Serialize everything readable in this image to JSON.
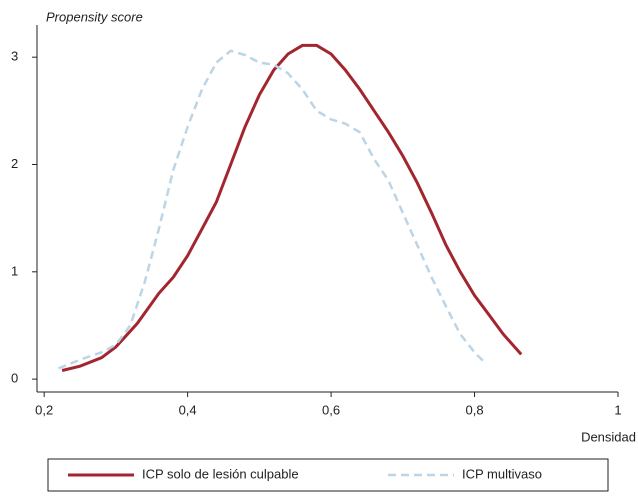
{
  "chart_data": {
    "type": "line",
    "ylabel": "Propensity score",
    "xlabel": "Densidad",
    "xlim": [
      0.19,
      1.0
    ],
    "ylim": [
      -0.12,
      3.3
    ],
    "xticks": [
      {
        "value": 0.2,
        "label": "0,2"
      },
      {
        "value": 0.4,
        "label": "0,4"
      },
      {
        "value": 0.6,
        "label": "0,6"
      },
      {
        "value": 0.8,
        "label": "0,8"
      },
      1
    ],
    "yticks": [
      0,
      1,
      2,
      3
    ],
    "series": [
      {
        "name": "ICP solo de lesión culpable",
        "color": "#a3252e",
        "dash": false,
        "x": [
          0.225,
          0.25,
          0.28,
          0.3,
          0.33,
          0.36,
          0.38,
          0.4,
          0.42,
          0.44,
          0.46,
          0.48,
          0.5,
          0.52,
          0.54,
          0.56,
          0.58,
          0.6,
          0.62,
          0.64,
          0.66,
          0.68,
          0.7,
          0.72,
          0.74,
          0.76,
          0.78,
          0.8,
          0.82,
          0.84,
          0.865
        ],
        "values": [
          0.08,
          0.12,
          0.2,
          0.3,
          0.52,
          0.8,
          0.95,
          1.15,
          1.4,
          1.65,
          2.0,
          2.35,
          2.65,
          2.88,
          3.03,
          3.11,
          3.11,
          3.03,
          2.88,
          2.7,
          2.5,
          2.3,
          2.08,
          1.83,
          1.55,
          1.25,
          1.0,
          0.78,
          0.6,
          0.42,
          0.23
        ]
      },
      {
        "name": "ICP multivaso",
        "color": "#bcd5e6",
        "dash": true,
        "x": [
          0.22,
          0.25,
          0.28,
          0.3,
          0.32,
          0.34,
          0.36,
          0.38,
          0.4,
          0.42,
          0.44,
          0.46,
          0.48,
          0.5,
          0.52,
          0.54,
          0.56,
          0.58,
          0.6,
          0.62,
          0.64,
          0.66,
          0.68,
          0.7,
          0.72,
          0.74,
          0.76,
          0.78,
          0.8,
          0.815
        ],
        "values": [
          0.1,
          0.18,
          0.25,
          0.32,
          0.5,
          0.9,
          1.4,
          1.95,
          2.35,
          2.7,
          2.95,
          3.06,
          3.02,
          2.95,
          2.93,
          2.85,
          2.7,
          2.5,
          2.42,
          2.38,
          2.3,
          2.05,
          1.85,
          1.55,
          1.25,
          0.95,
          0.68,
          0.42,
          0.25,
          0.15
        ]
      }
    ]
  }
}
